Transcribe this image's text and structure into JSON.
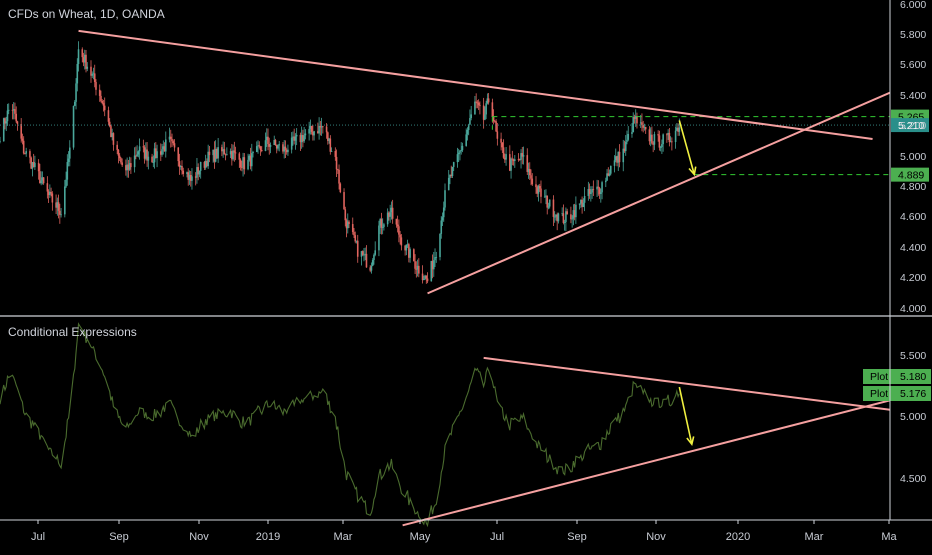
{
  "colors": {
    "background": "#000000",
    "text": "#c8ccd4",
    "up_candle": "#4aa79b",
    "down_candle": "#e0645e",
    "trendline": "#f5a0a0",
    "indicator_line": "#4a6b2e",
    "projection_arrow": "#f0f040",
    "level_dashed": "#33cc33",
    "level_label_bg": "#4caf50",
    "current_price_bg": "#2a8f8a",
    "current_price_line": "#3a8f8c"
  },
  "chart_data": [
    {
      "type": "candlestick",
      "title": "CFDs on Wheat, 1D, OANDA",
      "x_ticks": [
        "Jul",
        "Sep",
        "Nov",
        "2019",
        "Mar",
        "May",
        "Jul",
        "Sep",
        "Nov",
        "2020",
        "Mar",
        "Ma"
      ],
      "y_ticks": [
        "6.000",
        "5.800",
        "5.600",
        "5.400",
        "5.200",
        "5.000",
        "4.800",
        "4.600",
        "4.400",
        "4.200",
        "4.000"
      ],
      "ylim": [
        3.98,
        6.02
      ],
      "x_range": [
        "2018-06-01",
        "2020-05-15"
      ],
      "price_labels": [
        {
          "value": 5.265,
          "label": "5.265",
          "style": "level"
        },
        {
          "value": 5.21,
          "label": "5.210",
          "style": "current"
        },
        {
          "value": 4.889,
          "label": "4.889",
          "style": "level"
        }
      ],
      "close_path": [
        [
          "2018-06-01",
          5.15
        ],
        [
          "2018-06-10",
          5.35
        ],
        [
          "2018-06-20",
          5.05
        ],
        [
          "2018-07-01",
          4.9
        ],
        [
          "2018-07-10",
          4.75
        ],
        [
          "2018-07-20",
          4.65
        ],
        [
          "2018-07-28",
          5.1
        ],
        [
          "2018-08-03",
          5.7
        ],
        [
          "2018-08-10",
          5.6
        ],
        [
          "2018-08-18",
          5.45
        ],
        [
          "2018-08-25",
          5.3
        ],
        [
          "2018-09-01",
          5.05
        ],
        [
          "2018-09-10",
          4.9
        ],
        [
          "2018-09-20",
          5.05
        ],
        [
          "2018-10-01",
          5.0
        ],
        [
          "2018-10-15",
          5.1
        ],
        [
          "2018-11-01",
          4.85
        ],
        [
          "2018-11-15",
          5.0
        ],
        [
          "2018-12-01",
          5.05
        ],
        [
          "2018-12-15",
          4.95
        ],
        [
          "2019-01-01",
          5.1
        ],
        [
          "2019-01-15",
          5.05
        ],
        [
          "2019-02-01",
          5.15
        ],
        [
          "2019-02-15",
          5.2
        ],
        [
          "2019-02-25",
          5.0
        ],
        [
          "2019-03-05",
          4.6
        ],
        [
          "2019-03-15",
          4.4
        ],
        [
          "2019-03-25",
          4.3
        ],
        [
          "2019-04-01",
          4.55
        ],
        [
          "2019-04-10",
          4.65
        ],
        [
          "2019-04-20",
          4.45
        ],
        [
          "2019-05-01",
          4.3
        ],
        [
          "2019-05-10",
          4.2
        ],
        [
          "2019-05-17",
          4.4
        ],
        [
          "2019-05-25",
          4.8
        ],
        [
          "2019-06-01",
          4.95
        ],
        [
          "2019-06-10",
          5.15
        ],
        [
          "2019-06-17",
          5.35
        ],
        [
          "2019-06-24",
          5.25
        ],
        [
          "2019-06-29",
          5.4
        ],
        [
          "2019-07-05",
          5.1
        ],
        [
          "2019-07-15",
          4.95
        ],
        [
          "2019-07-25",
          5.0
        ],
        [
          "2019-08-05",
          4.8
        ],
        [
          "2019-08-15",
          4.7
        ],
        [
          "2019-08-25",
          4.6
        ],
        [
          "2019-09-01",
          4.62
        ],
        [
          "2019-09-15",
          4.75
        ],
        [
          "2019-09-25",
          4.8
        ],
        [
          "2019-10-05",
          4.95
        ],
        [
          "2019-10-15",
          5.05
        ],
        [
          "2019-10-23",
          5.25
        ],
        [
          "2019-11-01",
          5.15
        ],
        [
          "2019-11-10",
          5.1
        ],
        [
          "2019-11-20",
          5.12
        ],
        [
          "2019-11-28",
          5.21
        ]
      ],
      "trendlines": [
        {
          "from": [
            "2018-08-03",
            5.82
          ],
          "to": [
            "2020-05-01",
            5.12
          ]
        },
        {
          "from": [
            "2019-05-10",
            4.12
          ],
          "to": [
            "2020-05-15",
            5.42
          ]
        }
      ],
      "levels": [
        {
          "from": "2019-07-01",
          "to": "2020-05-15",
          "value": 5.265
        },
        {
          "from": "2019-12-10",
          "to": "2020-05-15",
          "value": 4.889
        }
      ],
      "projection_arrow": {
        "from": [
          "2019-11-28",
          5.24
        ],
        "to": [
          "2019-12-10",
          4.89
        ]
      }
    },
    {
      "type": "line",
      "title": "Conditional Expressions",
      "x_ticks": [
        "Jul",
        "Sep",
        "Nov",
        "2019",
        "Mar",
        "May",
        "Jul",
        "Sep",
        "Nov",
        "2020",
        "Mar",
        "Ma"
      ],
      "y_ticks": [
        "5.500",
        "5.000",
        "4.500"
      ],
      "ylim": [
        4.2,
        5.72
      ],
      "x_range": [
        "2018-06-01",
        "2020-05-15"
      ],
      "value_labels": [
        {
          "text": "Plot",
          "value": 5.18,
          "label": "5.180"
        },
        {
          "text": "Plot",
          "value": 5.176,
          "label": "5.176"
        }
      ],
      "trendlines": [
        {
          "from": [
            "2019-06-24",
            5.42
          ],
          "to": [
            "2020-05-15",
            5.03
          ]
        },
        {
          "from": [
            "2019-04-20",
            4.16
          ],
          "to": [
            "2020-05-15",
            5.1
          ]
        }
      ],
      "projection_arrow": {
        "from": [
          "2019-11-28",
          5.2
        ],
        "to": [
          "2019-12-08",
          4.77
        ]
      }
    }
  ]
}
